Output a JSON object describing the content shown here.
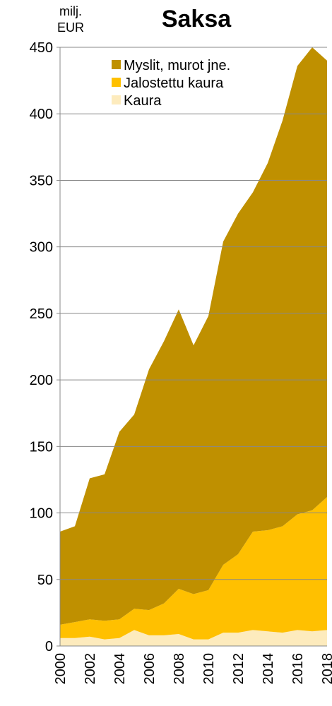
{
  "chart_data": {
    "type": "stacked_area",
    "title": "Saksa",
    "y_label": [
      "milj.",
      "EUR"
    ],
    "x": [
      2000,
      2001,
      2002,
      2003,
      2004,
      2005,
      2006,
      2007,
      2008,
      2009,
      2010,
      2011,
      2012,
      2013,
      2014,
      2015,
      2016,
      2017,
      2018
    ],
    "xticks": [
      2000,
      2002,
      2004,
      2006,
      2008,
      2010,
      2012,
      2014,
      2016,
      2018
    ],
    "xlim": [
      2000,
      2018
    ],
    "series": [
      {
        "name": "Kaura",
        "color": "#fdebbd",
        "values": [
          6,
          6,
          7,
          5,
          6,
          12,
          8,
          8,
          9,
          5,
          5,
          10,
          10,
          12,
          11,
          10,
          12,
          11,
          12
        ]
      },
      {
        "name": "Jalostettu kaura",
        "color": "#ffc000",
        "values": [
          10,
          12,
          13,
          14,
          14,
          16,
          19,
          24,
          34,
          34,
          37,
          51,
          59,
          74,
          76,
          80,
          87,
          91,
          100
        ]
      },
      {
        "name": "Myslit, murot jne.",
        "color": "#bf9000",
        "values": [
          70,
          72,
          106,
          110,
          141,
          146,
          181,
          197,
          210,
          187,
          206,
          243,
          256,
          255,
          276,
          305,
          337,
          348,
          328
        ]
      }
    ],
    "ylim": [
      0,
      450
    ],
    "yticks": [
      0,
      50,
      100,
      150,
      200,
      250,
      300,
      350,
      400,
      450
    ],
    "grid": true
  }
}
